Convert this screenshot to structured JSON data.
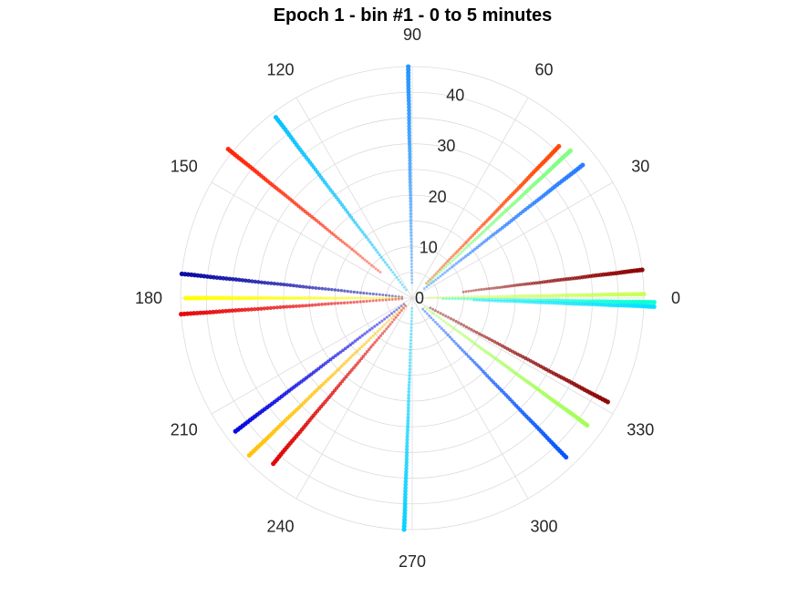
{
  "chart_data": {
    "type": "scatter",
    "projection": "polar",
    "title": "Epoch 1 - bin #1 - 0 to 5 minutes",
    "xlabel": "",
    "ylabel": "",
    "theta_unit": "degrees",
    "rlim": [
      0,
      45
    ],
    "r_ticks": [
      0,
      10,
      20,
      30,
      40
    ],
    "theta_ticks": [
      0,
      30,
      60,
      90,
      120,
      150,
      180,
      210,
      240,
      270,
      300,
      330
    ],
    "grid": true,
    "legend": "none",
    "series": [
      {
        "theta": 91,
        "r_range": [
          3,
          45
        ],
        "color": "#1e90ff"
      },
      {
        "theta": 46,
        "r_range": [
          4,
          41
        ],
        "color": "#ff4500"
      },
      {
        "theta": 43,
        "r_range": [
          4,
          42
        ],
        "color": "#7cff7c"
      },
      {
        "theta": 38,
        "r_range": [
          3,
          42
        ],
        "color": "#1e78ff"
      },
      {
        "theta": 7,
        "r_range": [
          10,
          45
        ],
        "color": "#8b0000"
      },
      {
        "theta": 1,
        "r_range": [
          3,
          45
        ],
        "color": "#c8ff50"
      },
      {
        "theta": -1,
        "r_range": [
          6,
          47
        ],
        "color": "#00ffd0"
      },
      {
        "theta": -2,
        "r_range": [
          12,
          47
        ],
        "color": "#00e0ff"
      },
      {
        "theta": -28,
        "r_range": [
          4,
          43
        ],
        "color": "#8b0000"
      },
      {
        "theta": -36,
        "r_range": [
          3,
          42
        ],
        "color": "#a0ff50"
      },
      {
        "theta": -46,
        "r_range": [
          3,
          43
        ],
        "color": "#0050ff"
      },
      {
        "theta": -92,
        "r_range": [
          2,
          45
        ],
        "color": "#00d0ff"
      },
      {
        "theta": 127,
        "r_range": [
          2,
          44
        ],
        "color": "#00bfff"
      },
      {
        "theta": 141,
        "r_range": [
          8,
          46
        ],
        "color": "#ff2000"
      },
      {
        "theta": 174,
        "r_range": [
          2,
          45
        ],
        "color": "#0000a0"
      },
      {
        "theta": 180,
        "r_range": [
          2,
          44
        ],
        "color": "#ffff00"
      },
      {
        "theta": 184,
        "r_range": [
          2,
          45
        ],
        "color": "#e60000"
      },
      {
        "theta": 217,
        "r_range": [
          2,
          43
        ],
        "color": "#0000e0"
      },
      {
        "theta": 224,
        "r_range": [
          2,
          44
        ],
        "color": "#ffc000"
      },
      {
        "theta": 230,
        "r_range": [
          2,
          42
        ],
        "color": "#dc0000"
      }
    ]
  }
}
